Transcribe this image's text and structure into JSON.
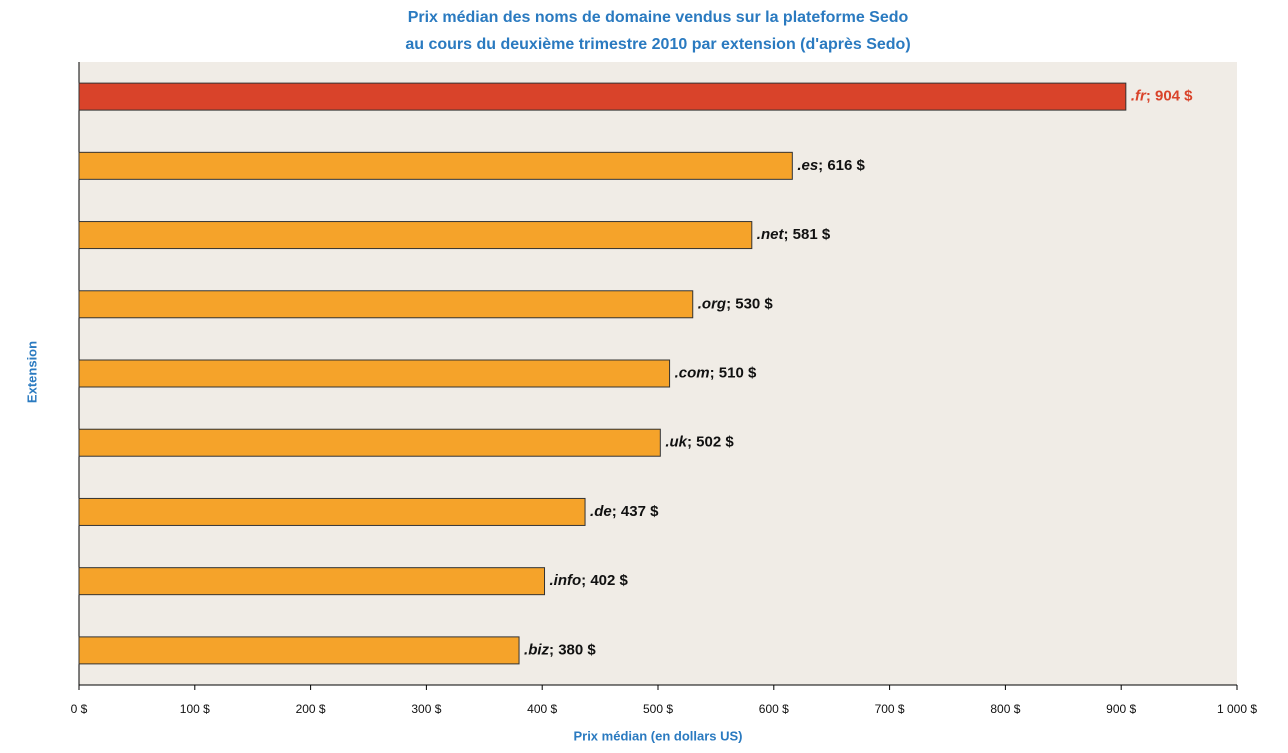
{
  "chart_data": {
    "type": "barh",
    "title": [
      "Prix médian des noms de domaine vendus sur la plateforme Sedo",
      "au cours du deuxième trimestre 2010 par extension (d'après Sedo)"
    ],
    "xlabel": "Prix médian (en dollars US)",
    "ylabel": "Extension",
    "categories": [
      ".fr",
      ".es",
      ".net",
      ".org",
      ".com",
      ".uk",
      ".de",
      ".info",
      ".biz"
    ],
    "values": [
      904,
      616,
      581,
      530,
      510,
      502,
      437,
      402,
      380
    ],
    "value_labels": [
      "; 904 $",
      "; 616 $",
      "; 581 $",
      "; 530 $",
      "; 510 $",
      "; 502 $",
      "; 437 $",
      "; 402 $",
      "; 380 $"
    ],
    "colors": [
      "#d9432a",
      "#f5a32a",
      "#f5a32a",
      "#f5a32a",
      "#f5a32a",
      "#f5a32a",
      "#f5a32a",
      "#f5a32a",
      "#f5a32a"
    ],
    "label_colors": [
      "#d9432a",
      "#111111",
      "#111111",
      "#111111",
      "#111111",
      "#111111",
      "#111111",
      "#111111",
      "#111111"
    ],
    "xlim": [
      0,
      1000
    ],
    "xticks": [
      {
        "value": 0,
        "label": "0 $"
      },
      {
        "value": 100,
        "label": "100 $"
      },
      {
        "value": 200,
        "label": "200 $"
      },
      {
        "value": 300,
        "label": "300 $"
      },
      {
        "value": 400,
        "label": "400 $"
      },
      {
        "value": 500,
        "label": "500 $"
      },
      {
        "value": 600,
        "label": "600 $"
      },
      {
        "value": 700,
        "label": "700 $"
      },
      {
        "value": 800,
        "label": "800 $"
      },
      {
        "value": 900,
        "label": "900 $"
      },
      {
        "value": 1000,
        "label": "1 000 $"
      }
    ]
  }
}
